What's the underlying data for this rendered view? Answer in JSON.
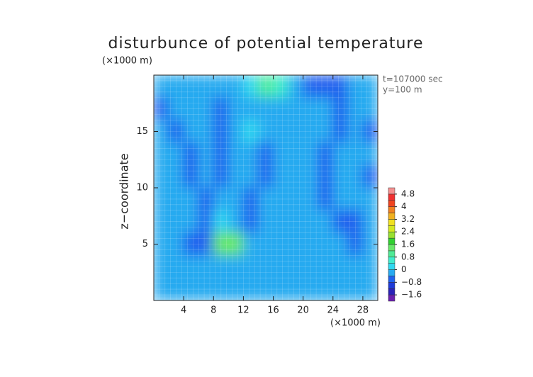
{
  "chart_data": {
    "type": "heatmap",
    "title": "disturbunce of potential temperature",
    "y_unit_label": "(×1000 m)",
    "x_unit_label": "(×1000 m)",
    "y_label": "z−coordinate",
    "annotations": [
      "t=107000 sec",
      "y=100 m"
    ],
    "x": [
      1,
      3,
      5,
      7,
      9,
      11,
      13,
      15,
      17,
      19,
      21,
      23,
      25,
      27,
      29
    ],
    "z": [
      19,
      17,
      15,
      13,
      11,
      9,
      7,
      5,
      3,
      1
    ],
    "values": [
      [
        -0.3,
        -0.2,
        -0.2,
        -0.3,
        -0.2,
        -0.2,
        0,
        0.8,
        0.4,
        -0.4,
        -0.8,
        -0.8,
        -0.6,
        -0.3,
        -0.2
      ],
      [
        -0.6,
        -0.2,
        -0.2,
        -0.3,
        -0.6,
        -0.2,
        -0.4,
        -0.4,
        -0.2,
        -0.2,
        -0.3,
        -0.2,
        -0.6,
        -0.4,
        -0.2
      ],
      [
        -0.4,
        -0.6,
        -0.2,
        -0.4,
        -0.8,
        -0.2,
        0,
        -0.3,
        -0.2,
        -0.2,
        -0.2,
        -0.3,
        -0.6,
        -0.2,
        -0.6
      ],
      [
        -0.2,
        -0.2,
        -0.6,
        -0.2,
        -0.8,
        -0.2,
        -0.2,
        -0.6,
        -0.2,
        -0.2,
        -0.2,
        -0.6,
        -0.2,
        -0.4,
        -0.4
      ],
      [
        -0.2,
        -0.2,
        -0.6,
        -0.2,
        -0.6,
        -0.2,
        -0.2,
        -0.6,
        -0.2,
        -0.2,
        -0.4,
        -0.6,
        -0.2,
        -0.2,
        -0.6
      ],
      [
        -0.2,
        -0.2,
        -0.4,
        -0.6,
        -0.4,
        -0.4,
        -0.6,
        -0.3,
        -0.2,
        -0.2,
        -0.2,
        -0.6,
        -0.2,
        -0.4,
        -0.4
      ],
      [
        -0.2,
        -0.2,
        -0.4,
        -0.6,
        0.2,
        -0.4,
        -0.6,
        -0.2,
        -0.2,
        -0.2,
        -0.2,
        -0.4,
        -0.6,
        -0.6,
        -0.4
      ],
      [
        -0.2,
        -0.4,
        -0.6,
        -0.8,
        1.4,
        1.2,
        -0.4,
        -0.2,
        -0.2,
        -0.2,
        -0.2,
        -0.2,
        -0.4,
        -0.8,
        -0.4
      ],
      [
        -0.2,
        -0.2,
        -0.4,
        -0.2,
        -0.4,
        -0.2,
        -0.3,
        -0.4,
        -0.2,
        -0.2,
        -0.3,
        -0.2,
        -0.2,
        -0.2,
        -0.4
      ],
      [
        -0.2,
        -0.2,
        -0.2,
        -0.2,
        -0.2,
        -0.2,
        -0.2,
        -0.2,
        -0.2,
        -0.2,
        -0.3,
        -0.2,
        -0.2,
        -0.2,
        -0.2
      ]
    ],
    "xlim": [
      0,
      30
    ],
    "ylim": [
      0,
      20
    ],
    "xticks": [
      4,
      8,
      12,
      16,
      20,
      24,
      28
    ],
    "yticks": [
      5,
      10,
      15
    ],
    "colorbar": {
      "bins": [
        -2.0,
        -1.6,
        -1.2,
        -0.8,
        -0.4,
        0,
        0.4,
        0.8,
        1.2,
        1.6,
        2.0,
        2.4,
        2.8,
        3.2,
        3.6,
        4.0,
        4.4,
        4.8,
        5.2
      ],
      "colors": [
        "#6a1fb0",
        "#2a22b8",
        "#1e3ad8",
        "#2062ee",
        "#28aaf0",
        "#30d8f0",
        "#40eccc",
        "#50ea96",
        "#68e868",
        "#30d030",
        "#98e030",
        "#d4e820",
        "#f0e020",
        "#f0b020",
        "#f08020",
        "#f04420",
        "#f03030",
        "#f49090"
      ],
      "ticks": [
        4.8,
        4,
        3.2,
        2.4,
        1.6,
        0.8,
        0,
        {
          "value": -0.8,
          "label": "−0.8"
        },
        {
          "value": -1.6,
          "label": "−1.6"
        }
      ]
    }
  }
}
